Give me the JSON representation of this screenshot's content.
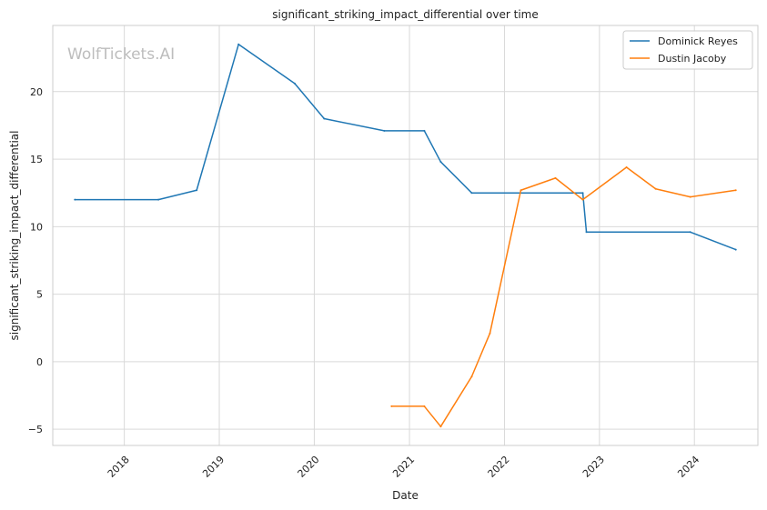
{
  "chart_data": {
    "type": "line",
    "title": "significant_striking_impact_differential over time",
    "xlabel": "Date",
    "ylabel": "significant_striking_impact_differential",
    "watermark": "WolfTickets.AI",
    "xlim": [
      "2017-04-01",
      "2024-09-01"
    ],
    "ylim": [
      -6.2,
      24.9
    ],
    "x_ticks": [
      "2018",
      "2019",
      "2020",
      "2021",
      "2022",
      "2023",
      "2024"
    ],
    "y_ticks": [
      -5,
      0,
      5,
      10,
      15,
      20
    ],
    "grid": true,
    "legend_position": "top-right",
    "series": [
      {
        "name": "Dominick Reyes",
        "color": "#1f77b4",
        "points": [
          [
            "2017-06-25",
            12.0
          ],
          [
            "2018-05-12",
            12.0
          ],
          [
            "2018-10-06",
            12.7
          ],
          [
            "2019-03-16",
            23.5
          ],
          [
            "2019-10-18",
            20.6
          ],
          [
            "2020-02-08",
            18.0
          ],
          [
            "2020-09-26",
            17.1
          ],
          [
            "2021-02-27",
            17.1
          ],
          [
            "2021-05-01",
            14.8
          ],
          [
            "2021-08-28",
            12.5
          ],
          [
            "2022-10-29",
            12.5
          ],
          [
            "2022-11-12",
            9.6
          ],
          [
            "2023-12-16",
            9.6
          ],
          [
            "2024-06-08",
            8.3
          ]
        ]
      },
      {
        "name": "Dustin Jacoby",
        "color": "#ff7f0e",
        "points": [
          [
            "2020-10-24",
            -3.3
          ],
          [
            "2021-02-27",
            -3.3
          ],
          [
            "2021-05-01",
            -4.8
          ],
          [
            "2021-08-28",
            -1.1
          ],
          [
            "2021-11-06",
            2.1
          ],
          [
            "2022-03-05",
            12.7
          ],
          [
            "2022-07-16",
            13.6
          ],
          [
            "2022-10-29",
            12.0
          ],
          [
            "2023-04-15",
            14.4
          ],
          [
            "2023-08-05",
            12.8
          ],
          [
            "2023-12-16",
            12.2
          ],
          [
            "2024-06-08",
            12.7
          ]
        ]
      }
    ]
  }
}
